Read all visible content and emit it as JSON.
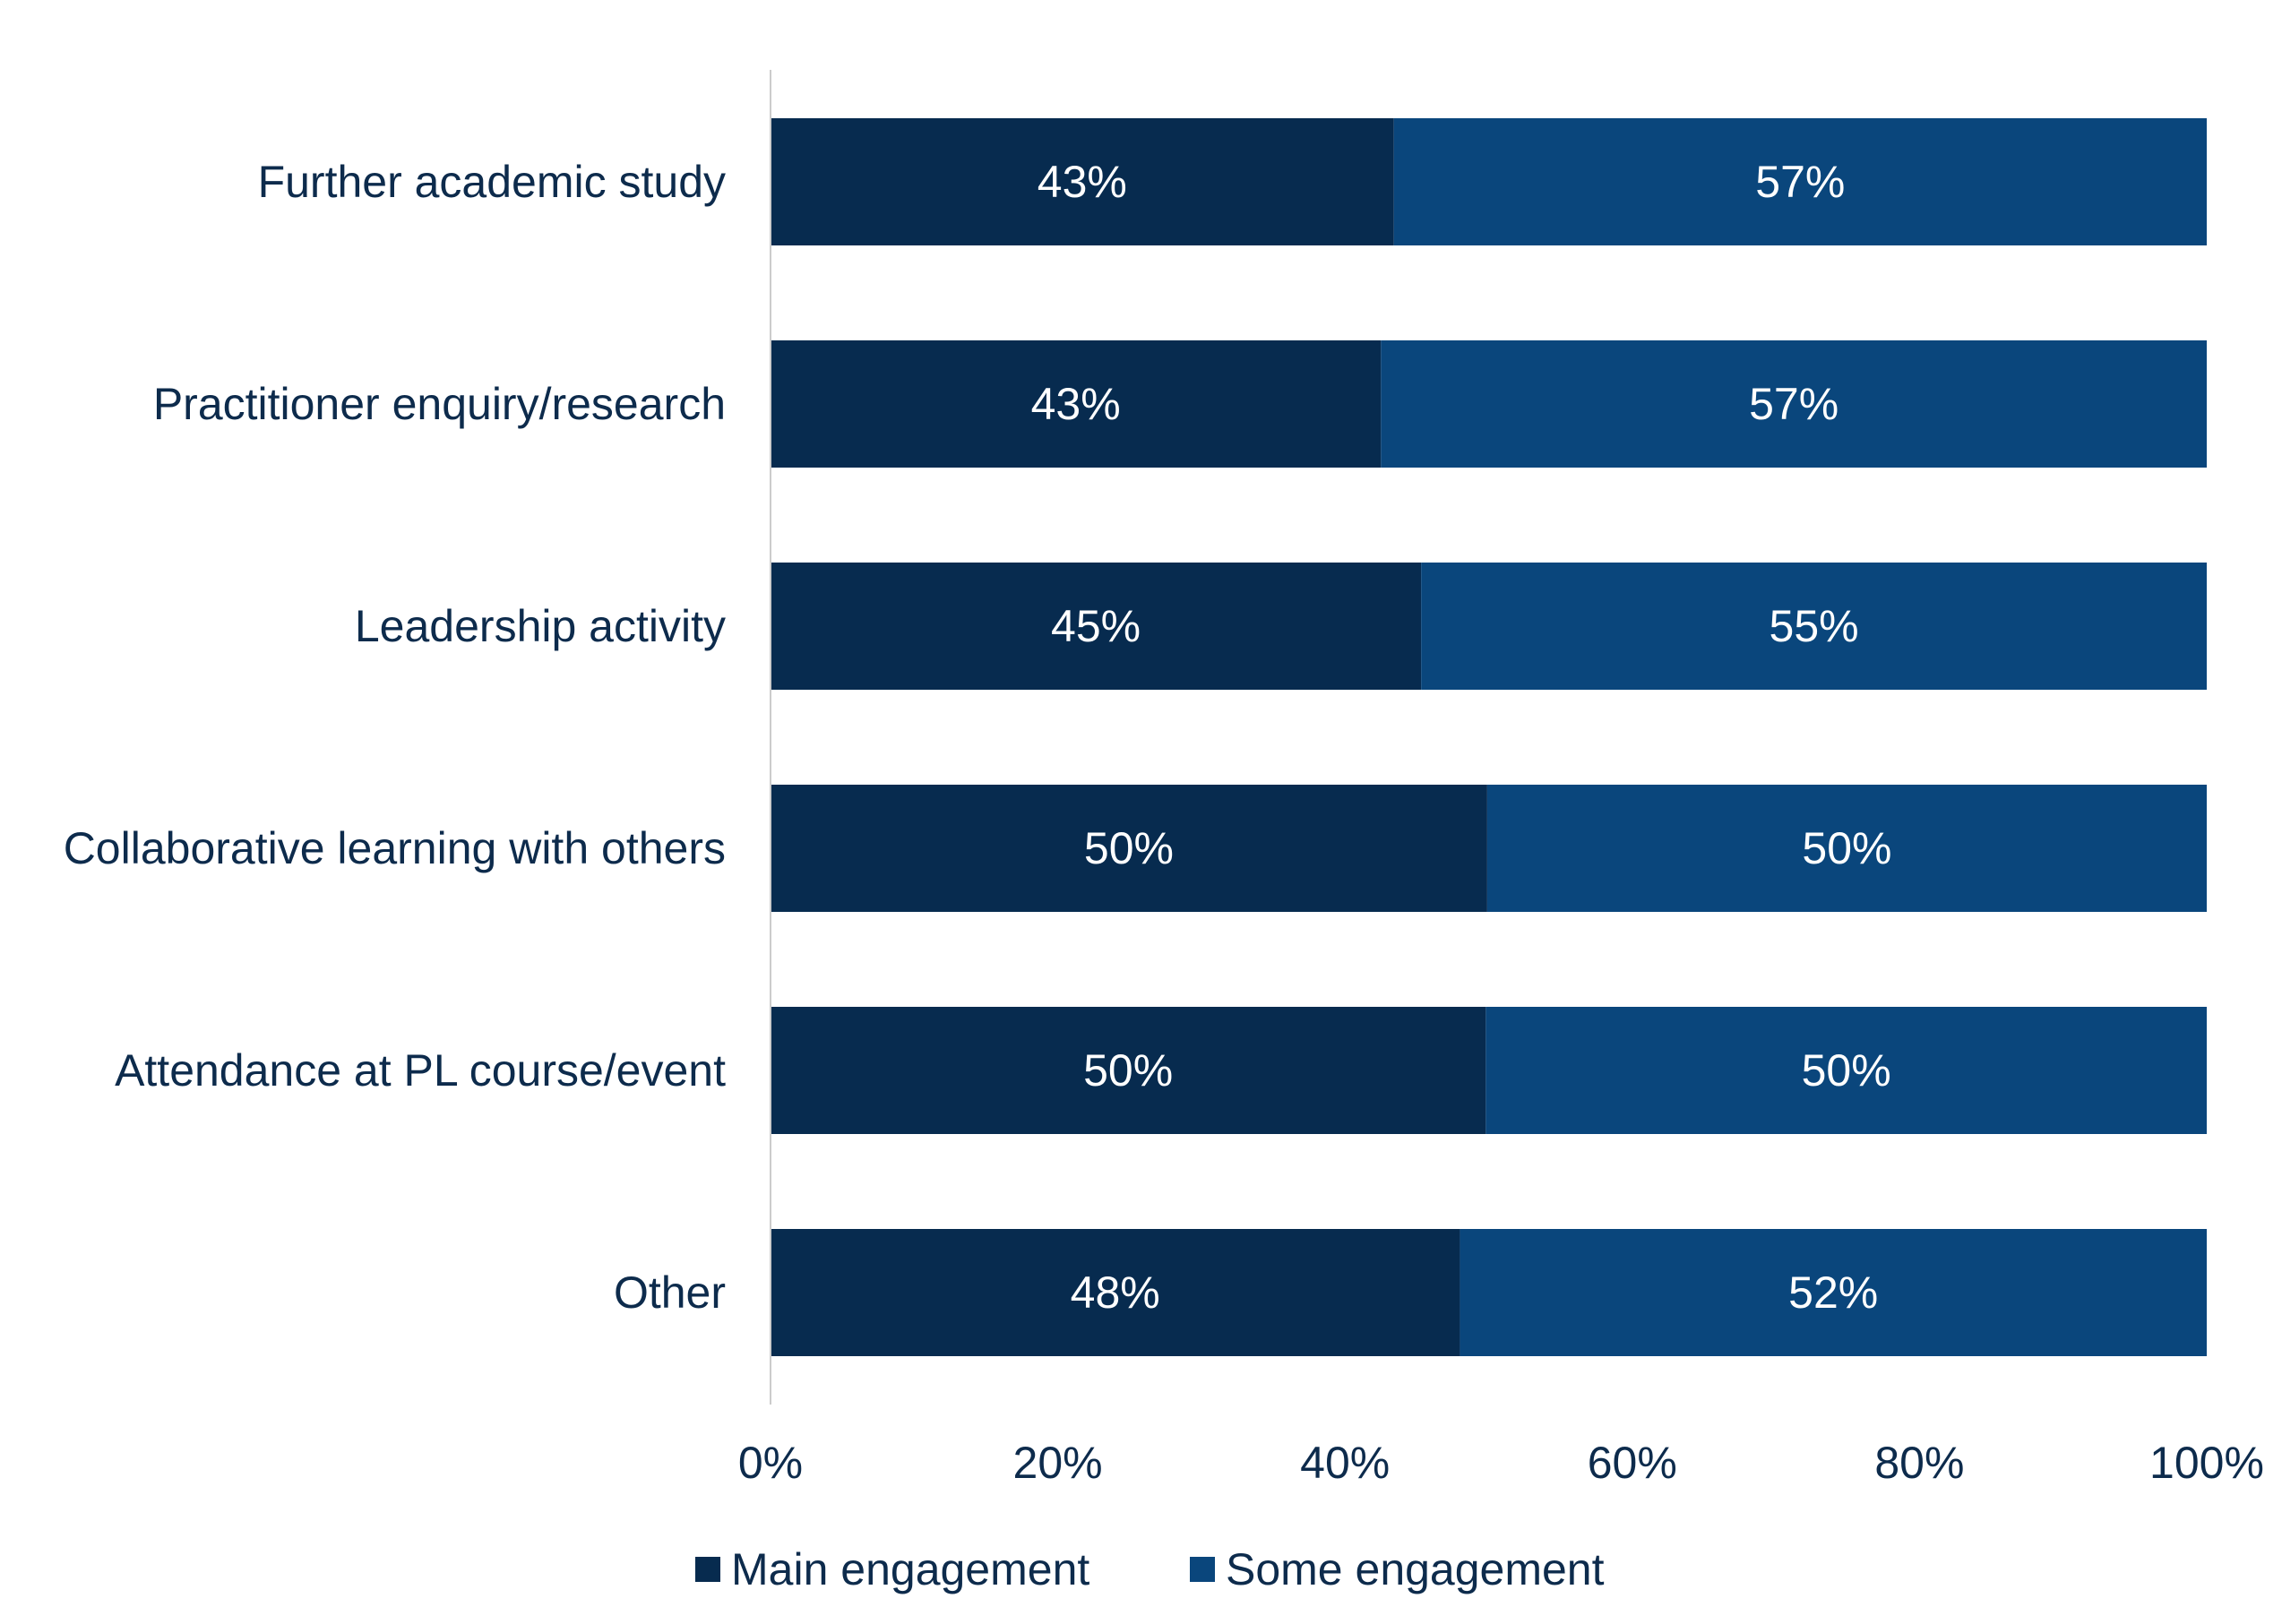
{
  "chart_data": {
    "type": "bar",
    "orientation": "horizontal",
    "stacked": true,
    "categories": [
      "Further academic study",
      "Practitioner enquiry/research",
      "Leadership activity",
      "Collaborative learning with others",
      "Attendance at PL course/event",
      "Other"
    ],
    "series": [
      {
        "name": "Main engagement",
        "color": "#072b4f",
        "values": [
          43.4,
          42.5,
          45.3,
          49.9,
          49.8,
          48.0
        ],
        "labels": [
          "43%",
          "43%",
          "45%",
          "50%",
          "50%",
          "48%"
        ]
      },
      {
        "name": "Some engagement",
        "color": "#0a467c",
        "values": [
          56.6,
          57.5,
          54.7,
          50.1,
          50.2,
          52.0
        ],
        "labels": [
          "57%",
          "57%",
          "55%",
          "50%",
          "50%",
          "52%"
        ]
      }
    ],
    "xlim": [
      0,
      100
    ],
    "x_ticks": [
      0,
      20,
      40,
      60,
      80,
      100
    ],
    "x_tick_labels": [
      "0%",
      "20%",
      "40%",
      "60%",
      "80%",
      "100%"
    ],
    "title": "",
    "xlabel": "",
    "ylabel": "",
    "grid": false,
    "legend": {
      "placement": "bottom"
    },
    "colors": {
      "text": "#0d2b4c",
      "axis": "#cccccc",
      "bar_label": "#ffffff"
    }
  }
}
